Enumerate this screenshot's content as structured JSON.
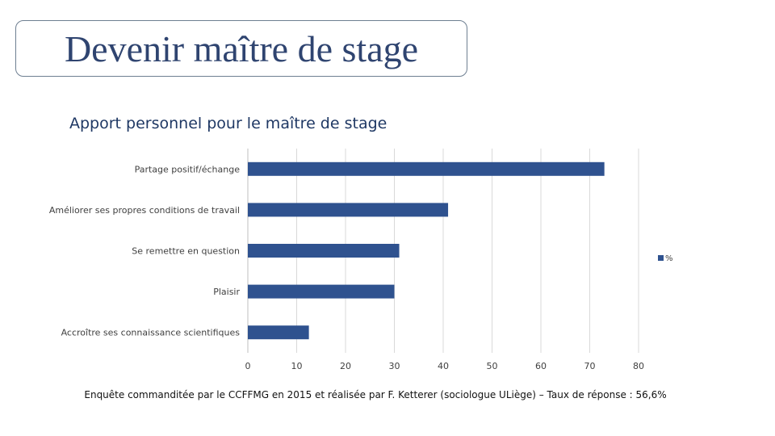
{
  "slide": {
    "title": "Devenir maître de stage",
    "footer": "Enquête commanditée par le CCFFMG en 2015 et réalisée par F. Ketterer (sociologue ULiège) – Taux de réponse : 56,6%"
  },
  "chart_data": {
    "type": "bar",
    "orientation": "horizontal",
    "title": "Apport personnel pour le maître de stage",
    "categories": [
      "Partage positif/échange",
      "Améliorer ses propres conditions de travail",
      "Se remettre en question",
      "Plaisir",
      "Accroître ses connaissance scientifiques"
    ],
    "series": [
      {
        "name": "%",
        "values": [
          73,
          41,
          31,
          30,
          12.5
        ]
      }
    ],
    "xlim": [
      0,
      80
    ],
    "xticks": [
      0,
      10,
      20,
      30,
      40,
      50,
      60,
      70,
      80
    ],
    "grid": true,
    "legend": "right",
    "colors": {
      "bar": "#2f528f",
      "grid": "#d9d9d9",
      "axis": "#bfbfbf",
      "label": "#404040"
    }
  }
}
